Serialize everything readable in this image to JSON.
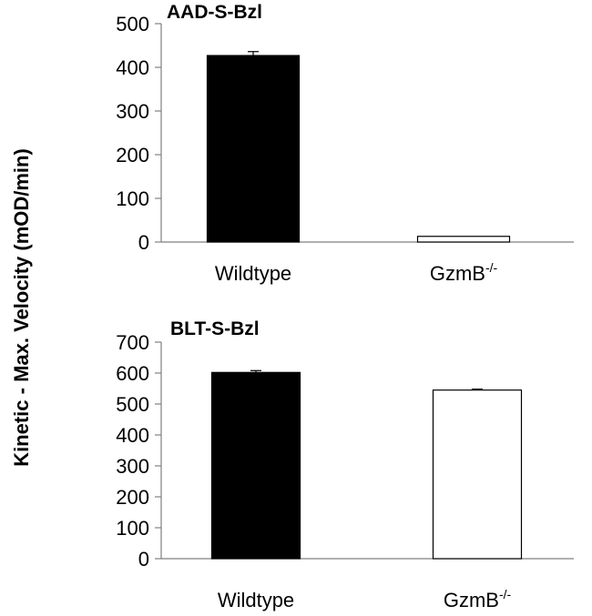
{
  "chart_data": {
    "ylabel": "Kinetic - Max. Velocity (mOD/min)",
    "panels": [
      {
        "type": "bar",
        "title": "AAD-S-Bzl",
        "categories": [
          {
            "base": "Wildtype",
            "sup": ""
          },
          {
            "base": "GzmB",
            "sup": "-/-"
          }
        ],
        "values": [
          427,
          13
        ],
        "errors": [
          9,
          0
        ],
        "ylim": [
          0,
          500
        ],
        "yticks": [
          0,
          100,
          200,
          300,
          400,
          500
        ],
        "bar_colors": [
          "#000000",
          "#ffffff"
        ]
      },
      {
        "type": "bar",
        "title": "BLT-S-Bzl",
        "categories": [
          {
            "base": "Wildtype",
            "sup": ""
          },
          {
            "base": "GzmB",
            "sup": "-/-"
          }
        ],
        "values": [
          602,
          545
        ],
        "errors": [
          6,
          3
        ],
        "ylim": [
          0,
          700
        ],
        "yticks": [
          0,
          100,
          200,
          300,
          400,
          500,
          600,
          700
        ],
        "bar_colors": [
          "#000000",
          "#ffffff"
        ]
      }
    ]
  }
}
